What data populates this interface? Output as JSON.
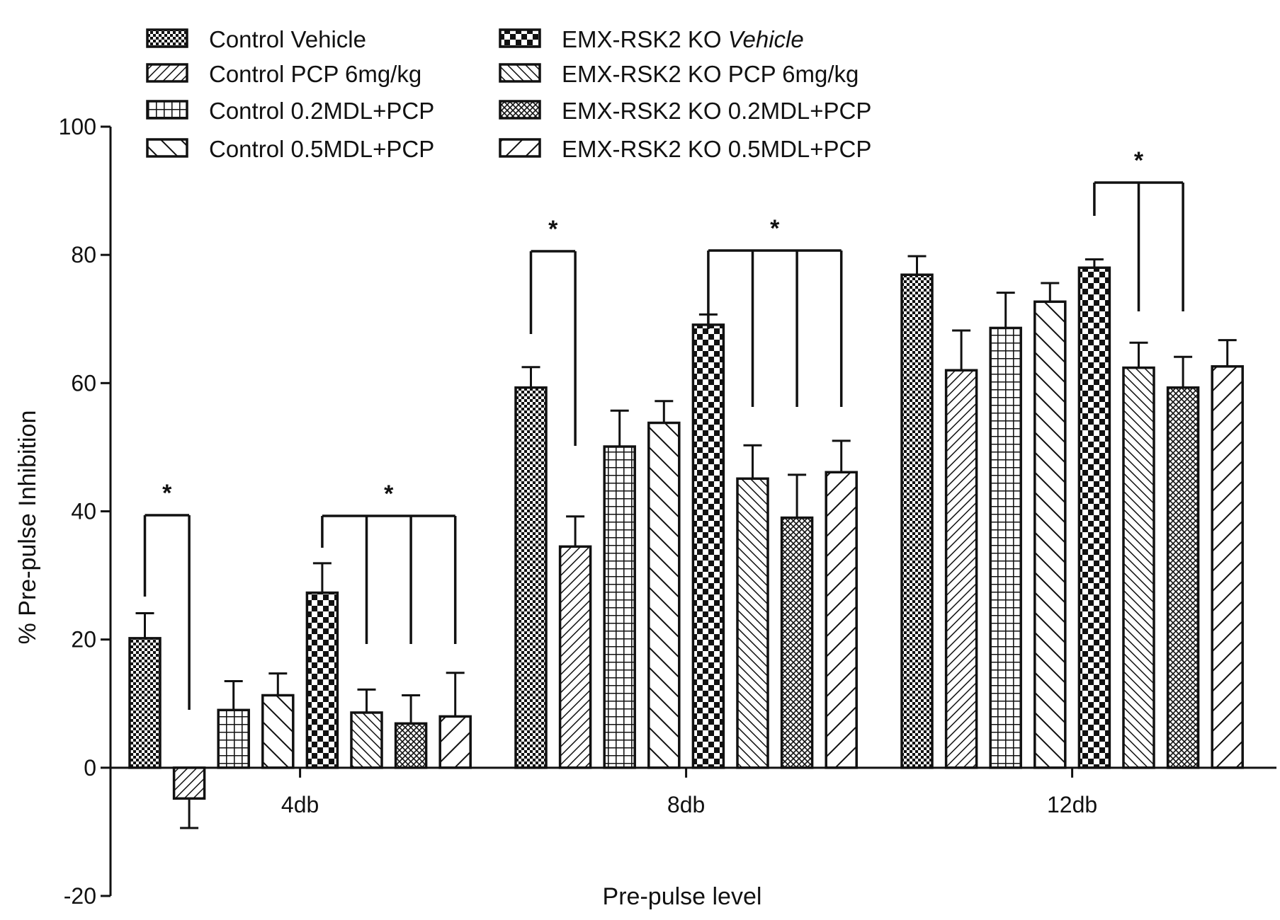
{
  "chart_data": {
    "type": "bar",
    "title": "",
    "xlabel": "Pre-pulse level",
    "ylabel": "% Pre-pulse Inhibition",
    "ylim": [
      -20,
      100
    ],
    "yticks": [
      -20,
      0,
      20,
      40,
      60,
      80,
      100
    ],
    "grid": false,
    "legend_position": "top",
    "categories": [
      "4db",
      "8db",
      "12db"
    ],
    "series": [
      {
        "name": "Control Vehicle",
        "label_parts": [
          {
            "text": "Control Vehicle",
            "italic": false
          }
        ],
        "pattern": "dense-check",
        "values": [
          20.2,
          59.3,
          76.9
        ],
        "errors": [
          3.9,
          3.2,
          2.9
        ]
      },
      {
        "name": "Control PCP 6mg/kg",
        "label_parts": [
          {
            "text": "Control PCP 6mg/kg",
            "italic": false
          }
        ],
        "pattern": "diag-up-fine",
        "values": [
          -4.8,
          34.5,
          62.0
        ],
        "errors": [
          4.6,
          4.7,
          6.2
        ]
      },
      {
        "name": "Control 0.2MDL+PCP",
        "label_parts": [
          {
            "text": "Control 0.2MDL+PCP",
            "italic": false
          }
        ],
        "pattern": "grid",
        "values": [
          9.0,
          50.1,
          68.6
        ],
        "errors": [
          4.5,
          5.6,
          5.5
        ]
      },
      {
        "name": "Control 0.5MDL+PCP",
        "label_parts": [
          {
            "text": "Control 0.5MDL+PCP",
            "italic": false
          }
        ],
        "pattern": "diag-down-wide",
        "values": [
          11.3,
          53.8,
          72.7
        ],
        "errors": [
          3.4,
          3.4,
          2.9
        ]
      },
      {
        "name": "EMX-RSK2 KO Vehicle",
        "label_parts": [
          {
            "text": "EMX-RSK2 KO ",
            "italic": false
          },
          {
            "text": "Vehicle",
            "italic": true
          }
        ],
        "pattern": "checker",
        "values": [
          27.3,
          69.1,
          78.0
        ],
        "errors": [
          4.6,
          1.6,
          1.3
        ]
      },
      {
        "name": "EMX-RSK2 KO PCP 6mg/kg",
        "label_parts": [
          {
            "text": "EMX-RSK2 KO PCP 6mg/kg",
            "italic": false
          }
        ],
        "pattern": "diag-down-fine",
        "values": [
          8.6,
          45.1,
          62.4
        ],
        "errors": [
          3.6,
          5.2,
          3.9
        ]
      },
      {
        "name": "EMX-RSK2 KO 0.2MDL+PCP",
        "label_parts": [
          {
            "text": "EMX-RSK2 KO 0.2MDL+PCP",
            "italic": false
          }
        ],
        "pattern": "crosshatch",
        "values": [
          6.9,
          39.0,
          59.3
        ],
        "errors": [
          4.4,
          6.7,
          4.8
        ]
      },
      {
        "name": "EMX-RSK2 KO 0.5MDL+PCP",
        "label_parts": [
          {
            "text": "EMX-RSK2 KO 0.5MDL+PCP",
            "italic": false
          }
        ],
        "pattern": "diag-up-wide",
        "values": [
          8.0,
          46.1,
          62.6
        ],
        "errors": [
          6.8,
          4.9,
          4.1
        ]
      }
    ],
    "significance": [
      {
        "category": 0,
        "from": 0,
        "to": [
          1
        ],
        "label": "*"
      },
      {
        "category": 0,
        "from": 4,
        "to": [
          5,
          6,
          7
        ],
        "label": "*"
      },
      {
        "category": 1,
        "from": 0,
        "to": [
          1
        ],
        "label": "*"
      },
      {
        "category": 1,
        "from": 4,
        "to": [
          5,
          6,
          7
        ],
        "label": "*"
      },
      {
        "category": 2,
        "from": 4,
        "to": [
          5,
          6
        ],
        "label": "*"
      }
    ]
  }
}
